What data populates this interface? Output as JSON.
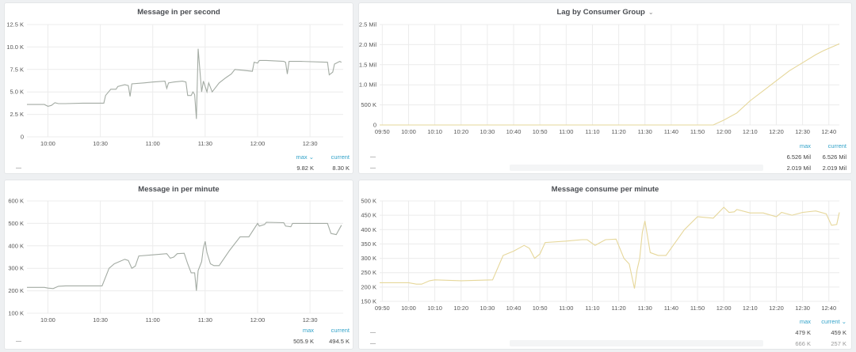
{
  "colors": {
    "grey_series": "#a3aba3",
    "yellow_series": "#e6d79a",
    "legend_header": "#33a3c9",
    "grid": "#ececec"
  },
  "panels": [
    {
      "title": "Message in per second",
      "has_menu": false,
      "legend": {
        "headers": [
          "max",
          "current"
        ],
        "sort_header": 0,
        "rows": [
          {
            "max": "9.82 K",
            "current": "8.30 K"
          }
        ]
      },
      "chart_data": {
        "type": "line",
        "xlim": [
          "09:48",
          "12:49"
        ],
        "ylim": [
          0,
          12500
        ],
        "yticks": [
          {
            "v": 0,
            "label": "0"
          },
          {
            "v": 2500,
            "label": "2.5 K"
          },
          {
            "v": 5000,
            "label": "5.0 K"
          },
          {
            "v": 7500,
            "label": "7.5 K"
          },
          {
            "v": 10000,
            "label": "10.0 K"
          },
          {
            "v": 12500,
            "label": "12.5 K"
          }
        ],
        "xticks": [
          "10:00",
          "10:30",
          "11:00",
          "11:30",
          "12:00",
          "12:30"
        ],
        "grid": true,
        "color": "#a3aba3",
        "series": [
          {
            "points": [
              [
                "09:48",
                3600
              ],
              [
                "09:58",
                3600
              ],
              [
                "10:00",
                3400
              ],
              [
                "10:02",
                3500
              ],
              [
                "10:04",
                3800
              ],
              [
                "10:06",
                3700
              ],
              [
                "10:10",
                3700
              ],
              [
                "10:20",
                3750
              ],
              [
                "10:32",
                3750
              ],
              [
                "10:33",
                4600
              ],
              [
                "10:36",
                5300
              ],
              [
                "10:39",
                5300
              ],
              [
                "10:40",
                5600
              ],
              [
                "10:44",
                5800
              ],
              [
                "10:46",
                5700
              ],
              [
                "10:47",
                4500
              ],
              [
                "10:48",
                5900
              ],
              [
                "10:55",
                6000
              ],
              [
                "11:00",
                6100
              ],
              [
                "11:07",
                6200
              ],
              [
                "11:08",
                5400
              ],
              [
                "11:09",
                6000
              ],
              [
                "11:12",
                6100
              ],
              [
                "11:17",
                6200
              ],
              [
                "11:19",
                6100
              ],
              [
                "11:20",
                4600
              ],
              [
                "11:22",
                4600
              ],
              [
                "11:23",
                5000
              ],
              [
                "11:24",
                4700
              ],
              [
                "11:25",
                2000
              ],
              [
                "11:26",
                9800
              ],
              [
                "11:28",
                5000
              ],
              [
                "11:29",
                6200
              ],
              [
                "11:31",
                5000
              ],
              [
                "11:32",
                6000
              ],
              [
                "11:34",
                5000
              ],
              [
                "11:38",
                6000
              ],
              [
                "11:42",
                6600
              ],
              [
                "11:45",
                7000
              ],
              [
                "11:47",
                7500
              ],
              [
                "11:52",
                7400
              ],
              [
                "11:57",
                7300
              ],
              [
                "11:58",
                8300
              ],
              [
                "12:00",
                8200
              ],
              [
                "12:01",
                8500
              ],
              [
                "12:05",
                8500
              ],
              [
                "12:15",
                8400
              ],
              [
                "12:16",
                8300
              ],
              [
                "12:17",
                7000
              ],
              [
                "12:18",
                8400
              ],
              [
                "12:25",
                8400
              ],
              [
                "12:40",
                8300
              ],
              [
                "12:41",
                6900
              ],
              [
                "12:43",
                7200
              ],
              [
                "12:44",
                8100
              ],
              [
                "12:47",
                8400
              ],
              [
                "12:48",
                8300
              ]
            ]
          }
        ]
      }
    },
    {
      "title": "Lag by Consumer Group",
      "has_menu": true,
      "legend": {
        "headers": [
          "max",
          "current"
        ],
        "sort_header": -1,
        "rows": [
          {
            "max": "6.526 Mil",
            "current": "6.526 Mil"
          },
          {
            "max": "2.019 Mil",
            "current": "2.019 Mil"
          }
        ]
      },
      "chart_data": {
        "type": "line",
        "xlim": [
          "09:49",
          "12:44"
        ],
        "ylim": [
          0,
          2500000
        ],
        "yticks": [
          {
            "v": 0,
            "label": "0"
          },
          {
            "v": 500000,
            "label": "500 K"
          },
          {
            "v": 1000000,
            "label": "1.0 Mil"
          },
          {
            "v": 1500000,
            "label": "1.5 Mil"
          },
          {
            "v": 2000000,
            "label": "2.0 Mil"
          },
          {
            "v": 2500000,
            "label": "2.5 Mil"
          }
        ],
        "xticks": [
          "09:50",
          "10:00",
          "10:10",
          "10:20",
          "10:30",
          "10:40",
          "10:50",
          "11:00",
          "11:10",
          "11:20",
          "11:30",
          "11:40",
          "11:50",
          "12:00",
          "12:10",
          "12:20",
          "12:30",
          "12:40"
        ],
        "grid": true,
        "color": "#e6d79a",
        "series": [
          {
            "points": [
              [
                "09:49",
                0
              ],
              [
                "11:56",
                0
              ],
              [
                "12:00",
                120000
              ],
              [
                "12:05",
                300000
              ],
              [
                "12:10",
                600000
              ],
              [
                "12:15",
                850000
              ],
              [
                "12:20",
                1100000
              ],
              [
                "12:25",
                1350000
              ],
              [
                "12:30",
                1550000
              ],
              [
                "12:35",
                1750000
              ],
              [
                "12:38",
                1850000
              ],
              [
                "12:44",
                2020000
              ]
            ]
          }
        ]
      }
    },
    {
      "title": "Message in per minute",
      "has_menu": false,
      "legend": {
        "headers": [
          "max",
          "current"
        ],
        "sort_header": -1,
        "rows": [
          {
            "max": "505.9 K",
            "current": "494.5 K"
          }
        ]
      },
      "chart_data": {
        "type": "line",
        "xlim": [
          "09:48",
          "12:49"
        ],
        "ylim": [
          100000,
          600000
        ],
        "yticks": [
          {
            "v": 100000,
            "label": "100 K"
          },
          {
            "v": 200000,
            "label": "200 K"
          },
          {
            "v": 300000,
            "label": "300 K"
          },
          {
            "v": 400000,
            "label": "400 K"
          },
          {
            "v": 500000,
            "label": "500 K"
          },
          {
            "v": 600000,
            "label": "600 K"
          }
        ],
        "xticks": [
          "10:00",
          "10:30",
          "11:00",
          "11:30",
          "12:00",
          "12:30"
        ],
        "grid": true,
        "color": "#a3aba3",
        "series": [
          {
            "points": [
              [
                "09:48",
                215000
              ],
              [
                "09:58",
                215000
              ],
              [
                "10:00",
                212000
              ],
              [
                "10:03",
                210000
              ],
              [
                "10:06",
                220000
              ],
              [
                "10:10",
                222000
              ],
              [
                "10:31",
                222000
              ],
              [
                "10:35",
                300000
              ],
              [
                "10:38",
                320000
              ],
              [
                "10:44",
                340000
              ],
              [
                "10:46",
                335000
              ],
              [
                "10:48",
                300000
              ],
              [
                "10:50",
                310000
              ],
              [
                "10:52",
                355000
              ],
              [
                "11:00",
                360000
              ],
              [
                "11:08",
                365000
              ],
              [
                "11:10",
                345000
              ],
              [
                "11:12",
                350000
              ],
              [
                "11:14",
                365000
              ],
              [
                "11:18",
                367000
              ],
              [
                "11:20",
                320000
              ],
              [
                "11:22",
                280000
              ],
              [
                "11:24",
                280000
              ],
              [
                "11:25",
                200000
              ],
              [
                "11:26",
                290000
              ],
              [
                "11:28",
                330000
              ],
              [
                "11:29",
                390000
              ],
              [
                "11:30",
                420000
              ],
              [
                "11:31",
                370000
              ],
              [
                "11:33",
                320000
              ],
              [
                "11:35",
                312000
              ],
              [
                "11:38",
                312000
              ],
              [
                "11:44",
                380000
              ],
              [
                "11:50",
                440000
              ],
              [
                "11:55",
                440000
              ],
              [
                "12:00",
                500000
              ],
              [
                "12:01",
                488000
              ],
              [
                "12:04",
                495000
              ],
              [
                "12:05",
                505000
              ],
              [
                "12:15",
                503000
              ],
              [
                "12:16",
                488000
              ],
              [
                "12:19",
                485000
              ],
              [
                "12:20",
                500000
              ],
              [
                "12:40",
                500000
              ],
              [
                "12:42",
                455000
              ],
              [
                "12:45",
                450000
              ],
              [
                "12:48",
                492000
              ]
            ]
          }
        ]
      }
    },
    {
      "title": "Message consume per minute",
      "has_menu": false,
      "legend": {
        "headers": [
          "max",
          "current"
        ],
        "sort_header": 1,
        "rows": [
          {
            "max": "479 K",
            "current": "459 K"
          },
          {
            "max": "666 K",
            "current": "257 K",
            "dim": true
          }
        ]
      },
      "chart_data": {
        "type": "line",
        "xlim": [
          "09:49",
          "12:44"
        ],
        "ylim": [
          150000,
          500000
        ],
        "yticks": [
          {
            "v": 150000,
            "label": "150 K"
          },
          {
            "v": 200000,
            "label": "200 K"
          },
          {
            "v": 250000,
            "label": "250 K"
          },
          {
            "v": 300000,
            "label": "300 K"
          },
          {
            "v": 350000,
            "label": "350 K"
          },
          {
            "v": 400000,
            "label": "400 K"
          },
          {
            "v": 450000,
            "label": "450 K"
          },
          {
            "v": 500000,
            "label": "500 K"
          }
        ],
        "xticks": [
          "09:50",
          "10:00",
          "10:10",
          "10:20",
          "10:30",
          "10:40",
          "10:50",
          "11:00",
          "11:10",
          "11:20",
          "11:30",
          "11:40",
          "11:50",
          "12:00",
          "12:10",
          "12:20",
          "12:30",
          "12:40"
        ],
        "grid": true,
        "color": "#e6d79a",
        "series": [
          {
            "points": [
              [
                "09:49",
                215000
              ],
              [
                "10:00",
                215000
              ],
              [
                "10:03",
                210000
              ],
              [
                "10:05",
                210000
              ],
              [
                "10:08",
                222000
              ],
              [
                "10:10",
                225000
              ],
              [
                "10:20",
                222000
              ],
              [
                "10:32",
                225000
              ],
              [
                "10:36",
                310000
              ],
              [
                "10:40",
                325000
              ],
              [
                "10:44",
                345000
              ],
              [
                "10:46",
                335000
              ],
              [
                "10:48",
                300000
              ],
              [
                "10:50",
                315000
              ],
              [
                "10:52",
                355000
              ],
              [
                "11:00",
                360000
              ],
              [
                "11:06",
                365000
              ],
              [
                "11:08",
                365000
              ],
              [
                "11:11",
                345000
              ],
              [
                "11:15",
                365000
              ],
              [
                "11:19",
                367000
              ],
              [
                "11:22",
                300000
              ],
              [
                "11:24",
                280000
              ],
              [
                "11:26",
                195000
              ],
              [
                "11:27",
                260000
              ],
              [
                "11:28",
                300000
              ],
              [
                "11:29",
                390000
              ],
              [
                "11:30",
                430000
              ],
              [
                "11:32",
                320000
              ],
              [
                "11:35",
                310000
              ],
              [
                "11:38",
                310000
              ],
              [
                "11:45",
                400000
              ],
              [
                "11:50",
                445000
              ],
              [
                "11:56",
                440000
              ],
              [
                "12:00",
                478000
              ],
              [
                "12:02",
                460000
              ],
              [
                "12:04",
                462000
              ],
              [
                "12:05",
                470000
              ],
              [
                "12:10",
                458000
              ],
              [
                "12:15",
                458000
              ],
              [
                "12:20",
                445000
              ],
              [
                "12:22",
                460000
              ],
              [
                "12:26",
                450000
              ],
              [
                "12:30",
                460000
              ],
              [
                "12:35",
                465000
              ],
              [
                "12:39",
                455000
              ],
              [
                "12:41",
                415000
              ],
              [
                "12:43",
                418000
              ],
              [
                "12:44",
                460000
              ]
            ]
          }
        ]
      }
    }
  ]
}
